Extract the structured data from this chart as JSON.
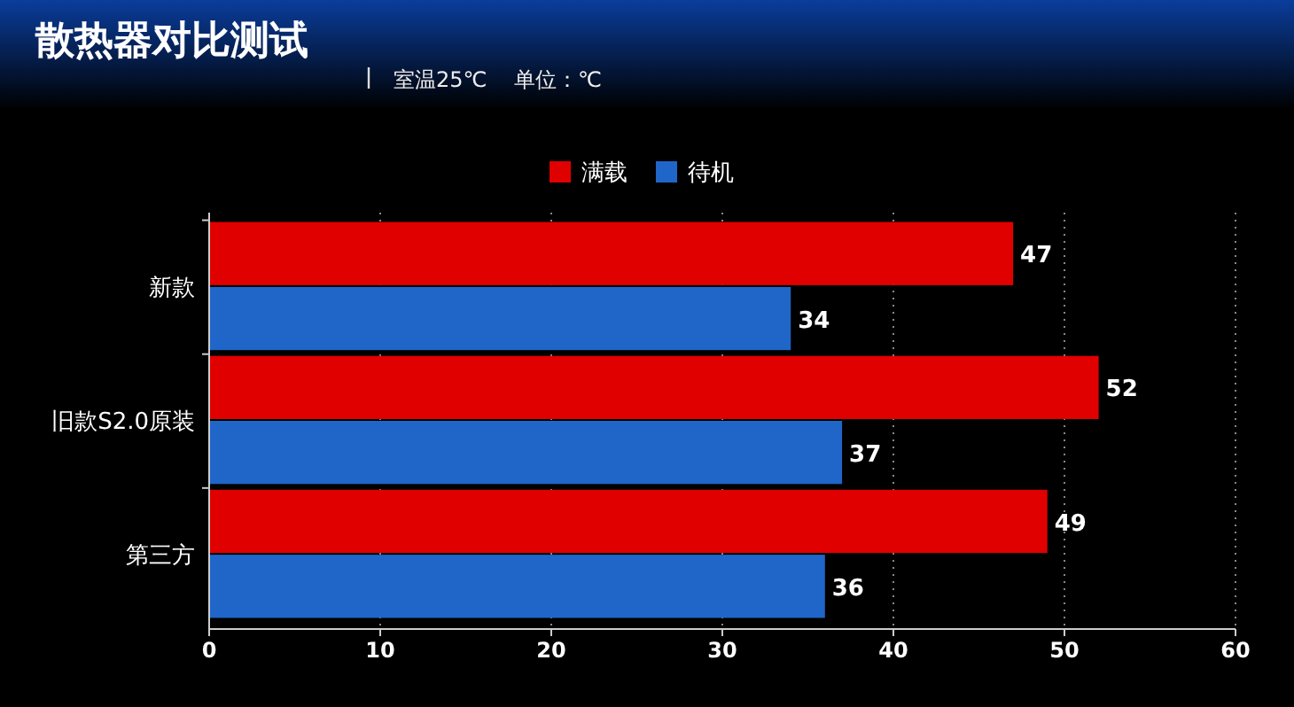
{
  "chart_data": {
    "type": "bar",
    "orientation": "horizontal",
    "title": "散热器对比测试",
    "subtitle": "室温25℃    单位：℃",
    "categories": [
      "新款",
      "旧款S2.0原装",
      "第三方"
    ],
    "series": [
      {
        "name": "满载",
        "color": "#e00000",
        "values": [
          47,
          52,
          49
        ]
      },
      {
        "name": "待机",
        "color": "#1f66c8",
        "values": [
          34,
          37,
          36
        ]
      }
    ],
    "xlim": [
      0,
      60
    ],
    "xticks": [
      0,
      10,
      20,
      30,
      40,
      50,
      60
    ],
    "grid": "x",
    "legend": "top",
    "data_labels": true
  }
}
